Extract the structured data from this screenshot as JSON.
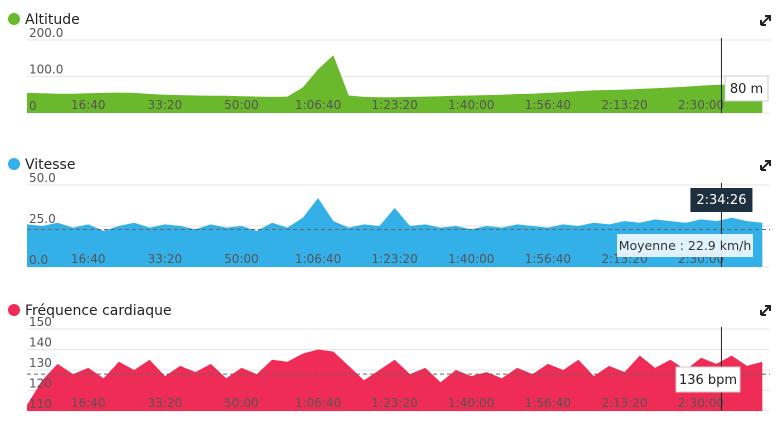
{
  "chart_data": [
    {
      "type": "area",
      "title": "Altitude",
      "color": "#6ab82c",
      "x": [
        200,
        400,
        600,
        800,
        1000,
        1200,
        1400,
        1600,
        1800,
        2000,
        2200,
        2400,
        2600,
        2800,
        3000,
        3200,
        3400,
        3600,
        3800,
        4000,
        4200,
        4400,
        4600,
        4800,
        5000,
        5200,
        5400,
        5600,
        5800,
        6000,
        6200,
        6400,
        6600,
        6800,
        7000,
        7200,
        7400,
        7600,
        7800,
        8000,
        8200,
        8400,
        8600,
        8800,
        9000,
        9200,
        9400,
        9600,
        9800
      ],
      "values": [
        55,
        54,
        53,
        53,
        54,
        55,
        56,
        55,
        52,
        50,
        49,
        48,
        47,
        47,
        46,
        45,
        44,
        45,
        70,
        120,
        158,
        48,
        44,
        43,
        43,
        44,
        45,
        46,
        47,
        48,
        49,
        50,
        52,
        53,
        55,
        57,
        60,
        62,
        63,
        64,
        66,
        68,
        70,
        72,
        75,
        77,
        78,
        80,
        80
      ],
      "xlim": [
        200,
        9900
      ],
      "xticks": [
        {
          "value": 1000,
          "label": "16:40"
        },
        {
          "value": 2000,
          "label": "33:20"
        },
        {
          "value": 3000,
          "label": "50:00"
        },
        {
          "value": 4000,
          "label": "1:06:40"
        },
        {
          "value": 5000,
          "label": "1:23:20"
        },
        {
          "value": 6000,
          "label": "1:40:00"
        },
        {
          "value": 7000,
          "label": "1:56:40"
        },
        {
          "value": 8000,
          "label": "2:13:20"
        },
        {
          "value": 9000,
          "label": "2:30:00"
        }
      ],
      "ylim": [
        0,
        200
      ],
      "yticks": [
        0,
        {
          "value": 100,
          "label": "100.0"
        },
        {
          "value": 200,
          "label": "200.0"
        }
      ],
      "tooltip": "80 m"
    },
    {
      "type": "area",
      "title": "Vitesse",
      "color": "#33b0e8",
      "x": [
        200,
        400,
        600,
        800,
        1000,
        1200,
        1400,
        1600,
        1800,
        2000,
        2200,
        2400,
        2600,
        2800,
        3000,
        3200,
        3400,
        3600,
        3800,
        4000,
        4200,
        4400,
        4600,
        4800,
        5000,
        5200,
        5400,
        5600,
        5800,
        6000,
        6200,
        6400,
        6600,
        6800,
        7000,
        7200,
        7400,
        7600,
        7800,
        8000,
        8200,
        8400,
        8600,
        8800,
        9000,
        9200,
        9400,
        9600,
        9800
      ],
      "values": [
        26,
        25,
        27,
        24,
        26,
        22,
        25,
        27,
        24,
        26,
        25,
        23,
        26,
        24,
        25,
        22,
        27,
        24,
        30,
        42,
        28,
        24,
        26,
        25,
        36,
        25,
        26,
        24,
        25,
        23,
        25,
        24,
        26,
        25,
        24,
        26,
        25,
        27,
        26,
        28,
        27,
        29,
        28,
        27,
        29,
        28,
        30,
        28,
        27
      ],
      "xlim": [
        200,
        9900
      ],
      "xticks": [
        {
          "value": 1000,
          "label": "16:40"
        },
        {
          "value": 2000,
          "label": "33:20"
        },
        {
          "value": 3000,
          "label": "50:00"
        },
        {
          "value": 4000,
          "label": "1:06:40"
        },
        {
          "value": 5000,
          "label": "1:23:20"
        },
        {
          "value": 6000,
          "label": "1:40:00"
        },
        {
          "value": 7000,
          "label": "1:56:40"
        },
        {
          "value": 8000,
          "label": "2:13:20"
        },
        {
          "value": 9000,
          "label": "2:30:00"
        }
      ],
      "ylim": [
        0,
        50
      ],
      "yticks": [
        {
          "value": 0,
          "label": "0.0"
        },
        {
          "value": 25,
          "label": "25.0"
        },
        {
          "value": 50,
          "label": "50.0"
        }
      ],
      "mean": 22.9,
      "mean_label": "Moyenne : 22.9 km/h",
      "cursor": {
        "value": 9266,
        "label": "2:34:26"
      }
    },
    {
      "type": "area",
      "title": "Fréquence cardiaque",
      "color": "#ee2c55",
      "x": [
        200,
        400,
        600,
        800,
        1000,
        1200,
        1400,
        1600,
        1800,
        2000,
        2200,
        2400,
        2600,
        2800,
        3000,
        3200,
        3400,
        3600,
        3800,
        4000,
        4200,
        4400,
        4600,
        4800,
        5000,
        5200,
        5400,
        5600,
        5800,
        6000,
        6200,
        6400,
        6600,
        6800,
        7000,
        7200,
        7400,
        7600,
        7800,
        8000,
        8200,
        8400,
        8600,
        8800,
        9000,
        9200,
        9400,
        9600,
        9800
      ],
      "values": [
        113,
        125,
        133,
        128,
        131,
        126,
        134,
        130,
        135,
        127,
        132,
        129,
        133,
        126,
        131,
        128,
        135,
        134,
        138,
        140,
        139,
        132,
        125,
        130,
        135,
        128,
        131,
        124,
        130,
        127,
        129,
        126,
        131,
        128,
        133,
        130,
        135,
        127,
        132,
        129,
        137,
        131,
        135,
        130,
        136,
        133,
        137,
        132,
        134
      ],
      "xlim": [
        200,
        9900
      ],
      "xticks": [
        {
          "value": 1000,
          "label": "16:40"
        },
        {
          "value": 2000,
          "label": "33:20"
        },
        {
          "value": 3000,
          "label": "50:00"
        },
        {
          "value": 4000,
          "label": "1:06:40"
        },
        {
          "value": 5000,
          "label": "1:23:20"
        },
        {
          "value": 6000,
          "label": "1:40:00"
        },
        {
          "value": 7000,
          "label": "1:56:40"
        },
        {
          "value": 8000,
          "label": "2:13:20"
        },
        {
          "value": 9000,
          "label": "2:30:00"
        }
      ],
      "ylim": [
        110,
        150
      ],
      "yticks": [
        110,
        120,
        130,
        140,
        150
      ],
      "mean": 128,
      "tooltip": "136 bpm"
    }
  ]
}
